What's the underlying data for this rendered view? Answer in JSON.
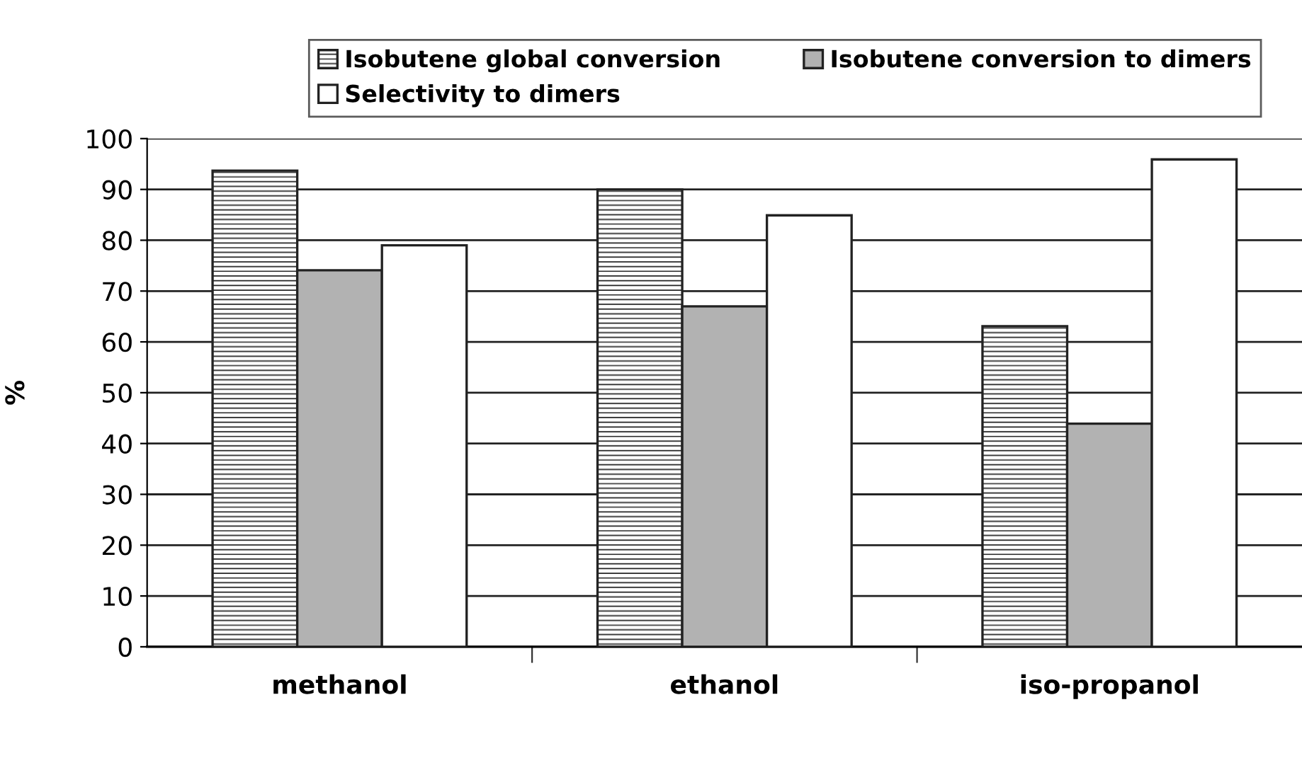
{
  "chart_data": {
    "type": "bar",
    "ylabel": "%",
    "categories": [
      "methanol",
      "ethanol",
      "iso-propanol"
    ],
    "series": [
      {
        "name": "Isobutene global conversion",
        "color": "#222222",
        "values": [
          93.7,
          90,
          63.1
        ]
      },
      {
        "name": "Isobutene conversion to dimers",
        "color": "#b2b2b2",
        "values": [
          74.1,
          67,
          43.9
        ]
      },
      {
        "name": "Selectivity to dimers",
        "color": "#ffffff",
        "values": [
          79,
          84.9,
          95.9
        ]
      }
    ],
    "ylim": [
      0,
      100
    ],
    "yticks": [
      0,
      10,
      20,
      30,
      40,
      50,
      60,
      70,
      80,
      90,
      100
    ],
    "grid": "y",
    "legend": "top"
  }
}
